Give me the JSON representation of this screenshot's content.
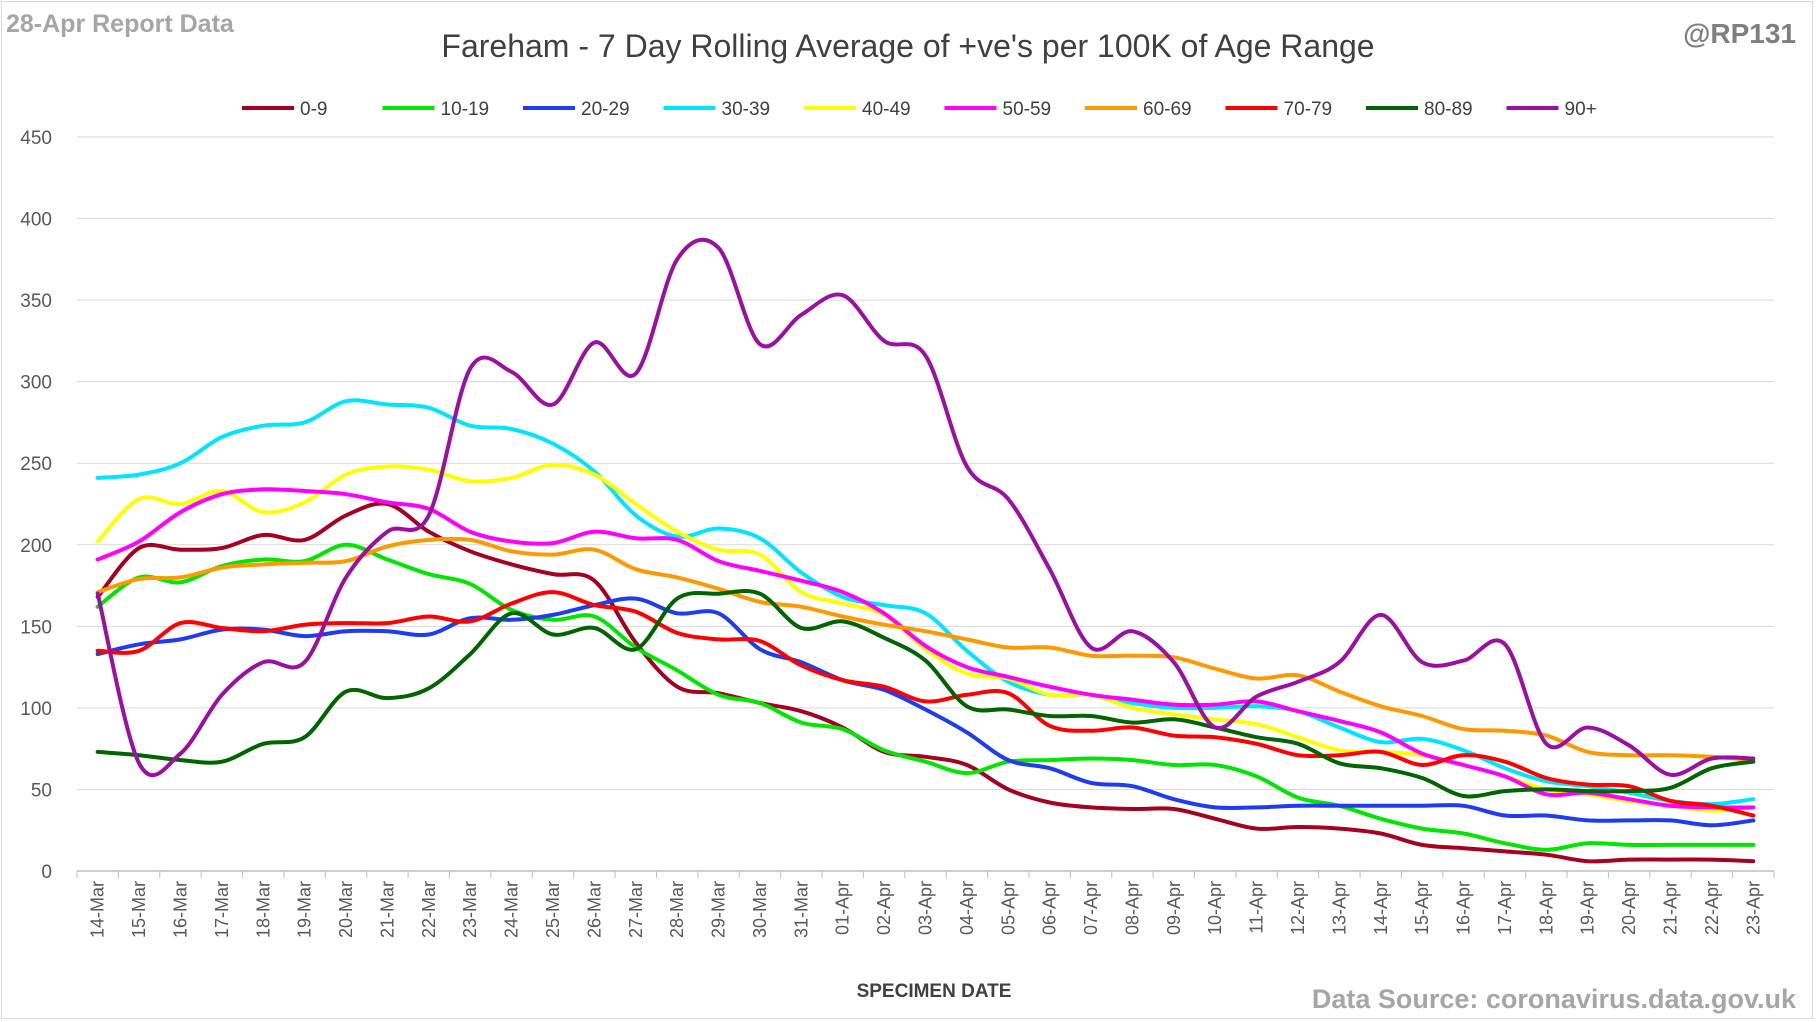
{
  "header": {
    "report_label": "28-Apr Report Data",
    "handle": "@RP131",
    "title": "Fareham - 7 Day Rolling Average of +ve's per 100K of Age Range",
    "source": "Data Source: coronavirus.data.gov.uk"
  },
  "chart_data": {
    "type": "line",
    "title": "Fareham - 7 Day Rolling Average of +ve's per 100K of Age Range",
    "xlabel": "SPECIMEN DATE",
    "ylabel": "",
    "ylim": [
      0,
      450
    ],
    "yticks": [
      0,
      50,
      100,
      150,
      200,
      250,
      300,
      350,
      400,
      450
    ],
    "grid": true,
    "legend_position": "top",
    "categories": [
      "14-Mar",
      "15-Mar",
      "16-Mar",
      "17-Mar",
      "18-Mar",
      "19-Mar",
      "20-Mar",
      "21-Mar",
      "22-Mar",
      "23-Mar",
      "24-Mar",
      "25-Mar",
      "26-Mar",
      "27-Mar",
      "28-Mar",
      "29-Mar",
      "30-Mar",
      "31-Mar",
      "01-Apr",
      "02-Apr",
      "03-Apr",
      "04-Apr",
      "05-Apr",
      "06-Apr",
      "07-Apr",
      "08-Apr",
      "09-Apr",
      "10-Apr",
      "11-Apr",
      "12-Apr",
      "13-Apr",
      "14-Apr",
      "15-Apr",
      "16-Apr",
      "17-Apr",
      "18-Apr",
      "19-Apr",
      "20-Apr",
      "21-Apr",
      "22-Apr",
      "23-Apr"
    ],
    "series": [
      {
        "name": "0-9",
        "color": "#a50021",
        "values": [
          168,
          198,
          197,
          198,
          206,
          203,
          218,
          225,
          208,
          196,
          188,
          182,
          178,
          140,
          113,
          109,
          103,
          98,
          88,
          73,
          70,
          65,
          50,
          42,
          39,
          38,
          38,
          32,
          26,
          27,
          26,
          23,
          16,
          14,
          12,
          10,
          6,
          7,
          7,
          7,
          6
        ]
      },
      {
        "name": "10-19",
        "color": "#00e600",
        "values": [
          162,
          180,
          177,
          187,
          191,
          190,
          200,
          191,
          182,
          176,
          160,
          154,
          156,
          137,
          123,
          108,
          103,
          91,
          87,
          74,
          67,
          60,
          67,
          68,
          69,
          68,
          65,
          65,
          58,
          45,
          40,
          32,
          26,
          23,
          17,
          13,
          17,
          16,
          16,
          16,
          16
        ]
      },
      {
        "name": "20-29",
        "color": "#1f3cf0",
        "values": [
          133,
          139,
          142,
          148,
          148,
          144,
          147,
          147,
          145,
          155,
          154,
          157,
          163,
          167,
          158,
          158,
          136,
          128,
          117,
          111,
          99,
          85,
          68,
          63,
          54,
          52,
          44,
          39,
          39,
          40,
          40,
          40,
          40,
          40,
          34,
          34,
          31,
          31,
          31,
          28,
          31
        ]
      },
      {
        "name": "30-39",
        "color": "#00e5ff",
        "values": [
          241,
          243,
          250,
          266,
          273,
          275,
          288,
          286,
          284,
          273,
          271,
          262,
          245,
          218,
          205,
          210,
          204,
          183,
          168,
          163,
          158,
          135,
          116,
          108,
          108,
          103,
          100,
          100,
          101,
          98,
          88,
          79,
          81,
          74,
          63,
          55,
          52,
          48,
          43,
          41,
          44
        ]
      },
      {
        "name": "40-49",
        "color": "#ffff00",
        "values": [
          202,
          228,
          225,
          233,
          220,
          226,
          243,
          248,
          246,
          239,
          241,
          249,
          243,
          225,
          208,
          197,
          194,
          171,
          164,
          157,
          136,
          121,
          118,
          108,
          108,
          100,
          96,
          93,
          90,
          82,
          74,
          73,
          71,
          65,
          58,
          50,
          47,
          43,
          40,
          37,
          39
        ]
      },
      {
        "name": "50-59",
        "color": "#ff00ff",
        "values": [
          191,
          202,
          220,
          231,
          234,
          233,
          231,
          226,
          222,
          208,
          202,
          201,
          208,
          204,
          203,
          190,
          184,
          178,
          171,
          158,
          138,
          125,
          119,
          113,
          108,
          105,
          102,
          102,
          104,
          98,
          92,
          85,
          72,
          65,
          58,
          47,
          48,
          44,
          40,
          39,
          39
        ]
      },
      {
        "name": "60-69",
        "color": "#ff9900",
        "values": [
          171,
          179,
          180,
          186,
          188,
          189,
          190,
          199,
          203,
          203,
          196,
          194,
          197,
          185,
          180,
          173,
          165,
          162,
          156,
          151,
          147,
          142,
          137,
          137,
          132,
          132,
          131,
          124,
          118,
          120,
          110,
          101,
          95,
          87,
          86,
          83,
          73,
          71,
          71,
          70,
          68
        ]
      },
      {
        "name": "70-79",
        "color": "#ff0000",
        "values": [
          135,
          135,
          152,
          149,
          147,
          151,
          152,
          152,
          156,
          153,
          164,
          171,
          163,
          159,
          146,
          142,
          141,
          126,
          117,
          113,
          104,
          108,
          109,
          89,
          86,
          88,
          83,
          82,
          78,
          71,
          71,
          73,
          65,
          71,
          67,
          57,
          53,
          52,
          43,
          40,
          34
        ]
      },
      {
        "name": "80-89",
        "color": "#006400",
        "values": [
          73,
          71,
          68,
          67,
          78,
          82,
          110,
          106,
          112,
          133,
          158,
          145,
          149,
          136,
          167,
          170,
          170,
          149,
          153,
          143,
          129,
          101,
          99,
          95,
          95,
          91,
          93,
          88,
          82,
          78,
          66,
          63,
          57,
          46,
          49,
          50,
          49,
          49,
          51,
          63,
          67
        ]
      },
      {
        "name": "90+",
        "color": "#9b0fa3",
        "values": [
          170,
          66,
          72,
          108,
          128,
          128,
          180,
          208,
          218,
          308,
          306,
          286,
          324,
          305,
          375,
          382,
          323,
          341,
          353,
          325,
          316,
          248,
          228,
          185,
          137,
          147,
          128,
          88,
          107,
          116,
          128,
          157,
          128,
          129,
          139,
          78,
          88,
          77,
          59,
          69,
          69
        ]
      }
    ]
  }
}
